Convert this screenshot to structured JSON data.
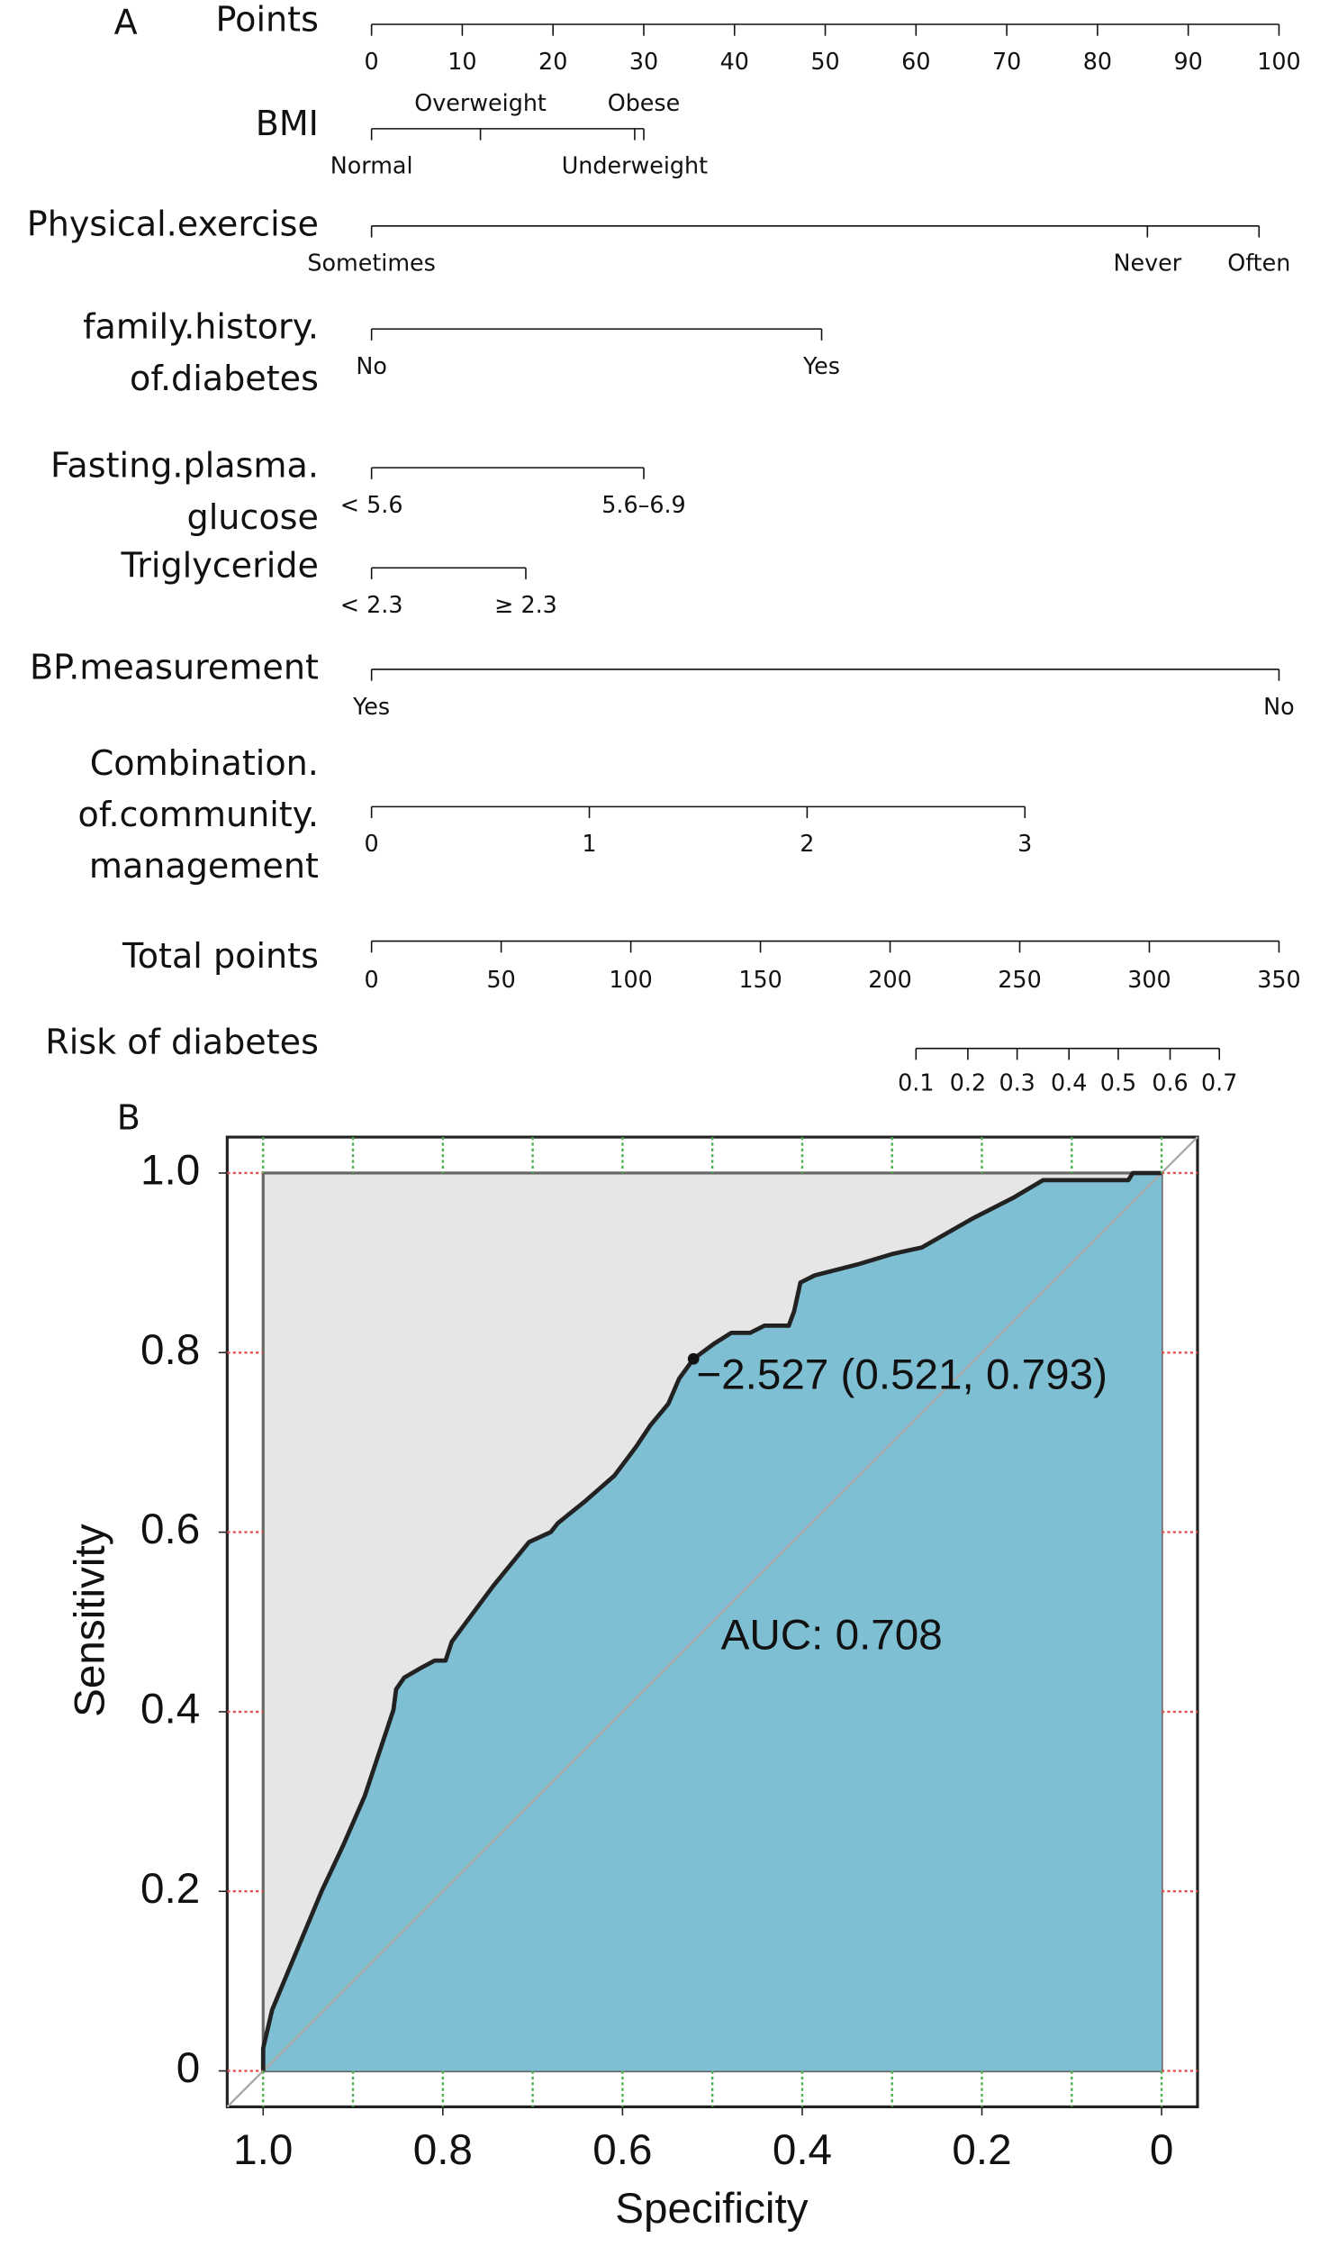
{
  "chart_data": [
    {
      "type": "nomogram",
      "panel": "A",
      "points_axis": {
        "label": "Points",
        "lim": [
          0,
          100
        ],
        "ticks": [
          0,
          10,
          20,
          30,
          40,
          50,
          60,
          70,
          80,
          90,
          100
        ]
      },
      "variables": [
        {
          "label": [
            "BMI"
          ],
          "levels": [
            "Normal",
            "Overweight",
            "Underweight",
            "Obese"
          ],
          "points": [
            0,
            12,
            29,
            30
          ]
        },
        {
          "label": [
            "Physical.exercise"
          ],
          "levels": [
            "Sometimes",
            "Never",
            "Often"
          ],
          "points": [
            0,
            85.5,
            97.8
          ]
        },
        {
          "label": [
            "family.history.",
            "of.diabetes"
          ],
          "levels": [
            "No",
            "Yes"
          ],
          "points": [
            0,
            49.6
          ]
        },
        {
          "label": [
            "Fasting.plasma.",
            "glucose"
          ],
          "levels": [
            "< 5.6",
            "5.6–6.9"
          ],
          "points": [
            0,
            30
          ]
        },
        {
          "label": [
            "Triglyceride"
          ],
          "levels": [
            "< 2.3",
            "≥ 2.3"
          ],
          "points": [
            0,
            17
          ]
        },
        {
          "label": [
            "BP.measurement"
          ],
          "levels": [
            "Yes",
            "No"
          ],
          "points": [
            0,
            100
          ]
        },
        {
          "label": [
            "Combination.",
            "of.community.",
            "management"
          ],
          "levels": [
            "0",
            "1",
            "2",
            "3"
          ],
          "points": [
            0,
            24,
            48,
            72
          ]
        }
      ],
      "total_points": {
        "label": "Total points",
        "lim": [
          0,
          350
        ],
        "ticks": [
          0,
          50,
          100,
          150,
          200,
          250,
          300,
          350
        ]
      },
      "risk": {
        "label": "Risk of diabetes",
        "ticks": [
          0.1,
          0.2,
          0.3,
          0.4,
          0.5,
          0.6,
          0.7
        ],
        "points": [
          210,
          230,
          249,
          269,
          288,
          308,
          327
        ]
      }
    },
    {
      "type": "roc",
      "panel": "B",
      "xlabel": "Specificity",
      "ylabel": "Sensitivity",
      "xlim": [
        1.04,
        -0.04
      ],
      "ylim": [
        -0.04,
        1.04
      ],
      "xticks": [
        {
          "value": 1,
          "label": "1.0"
        },
        0.8,
        0.6,
        0.4,
        0.2,
        0
      ],
      "yticks": [
        0,
        0.2,
        0.4,
        0.6,
        0.8,
        {
          "value": 1,
          "label": "1.0"
        }
      ],
      "x_minor_ticks": [
        1,
        0.9,
        0.8,
        0.7,
        0.6,
        0.5,
        0.4,
        0.3,
        0.2,
        0.1,
        0
      ],
      "color": "#7fbfd4",
      "background": "#e8e6e5",
      "x": [
        1,
        1,
        0.99,
        0.935,
        0.911,
        0.887,
        0.871,
        0.863,
        0.855,
        0.852,
        0.843,
        0.824,
        0.809,
        0.797,
        0.79,
        0.776,
        0.744,
        0.704,
        0.68,
        0.672,
        0.641,
        0.609,
        0.585,
        0.569,
        0.549,
        0.537,
        0.521,
        0.498,
        0.479,
        0.458,
        0.442,
        0.415,
        0.409,
        0.402,
        0.386,
        0.339,
        0.299,
        0.267,
        0.211,
        0.164,
        0.132,
        0.037,
        0.032,
        0
      ],
      "values": [
        0,
        0.025,
        0.068,
        0.2,
        0.251,
        0.306,
        0.354,
        0.378,
        0.402,
        0.425,
        0.438,
        0.449,
        0.457,
        0.457,
        0.478,
        0.497,
        0.54,
        0.589,
        0.6,
        0.61,
        0.635,
        0.663,
        0.695,
        0.719,
        0.743,
        0.771,
        0.793,
        0.81,
        0.822,
        0.822,
        0.83,
        0.83,
        0.846,
        0.878,
        0.886,
        0.898,
        0.91,
        0.917,
        0.949,
        0.973,
        0.992,
        0.992,
        1,
        1
      ],
      "threshold_point": {
        "x": 0.521,
        "y": 0.793,
        "label": "−2.527 (0.521, 0.793)"
      },
      "auc_label": "AUC: 0.708"
    }
  ]
}
